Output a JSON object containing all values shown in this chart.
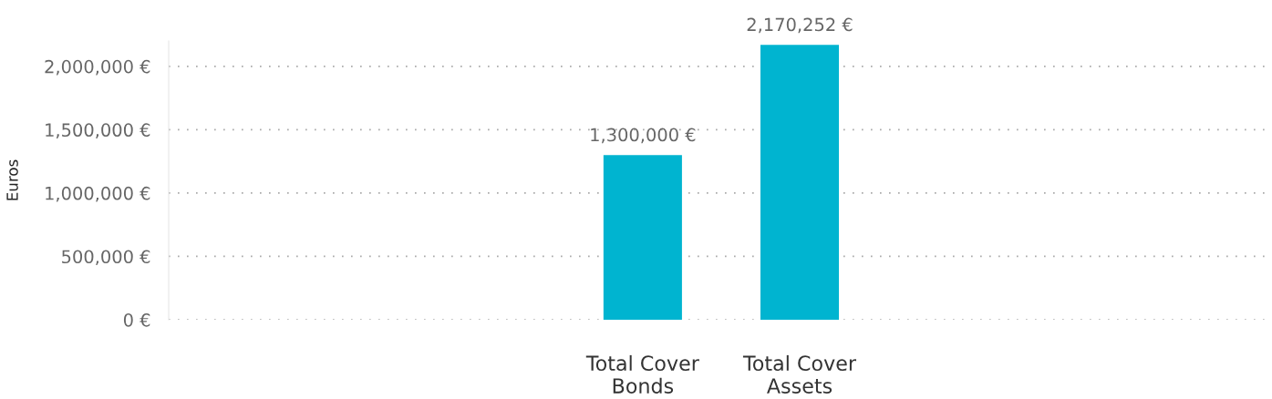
{
  "chart_data": {
    "type": "bar",
    "ylabel": "Euros",
    "categories": [
      "Total Cover\nBonds",
      "Total Cover\nAssets"
    ],
    "values": [
      1300000,
      2170252
    ],
    "value_labels": [
      "1,300,000 €",
      "2,170,252 €"
    ],
    "color": "#00b4d0",
    "ylim": [
      0,
      2200000
    ],
    "yticks": [
      {
        "value": 0,
        "label": "0 €"
      },
      {
        "value": 500000,
        "label": "500,000 €"
      },
      {
        "value": 1000000,
        "label": "1,000,000 €"
      },
      {
        "value": 1500000,
        "label": "1,500,000 €"
      },
      {
        "value": 2000000,
        "label": "2,000,000 €"
      }
    ],
    "grid": "y",
    "legend": false
  }
}
